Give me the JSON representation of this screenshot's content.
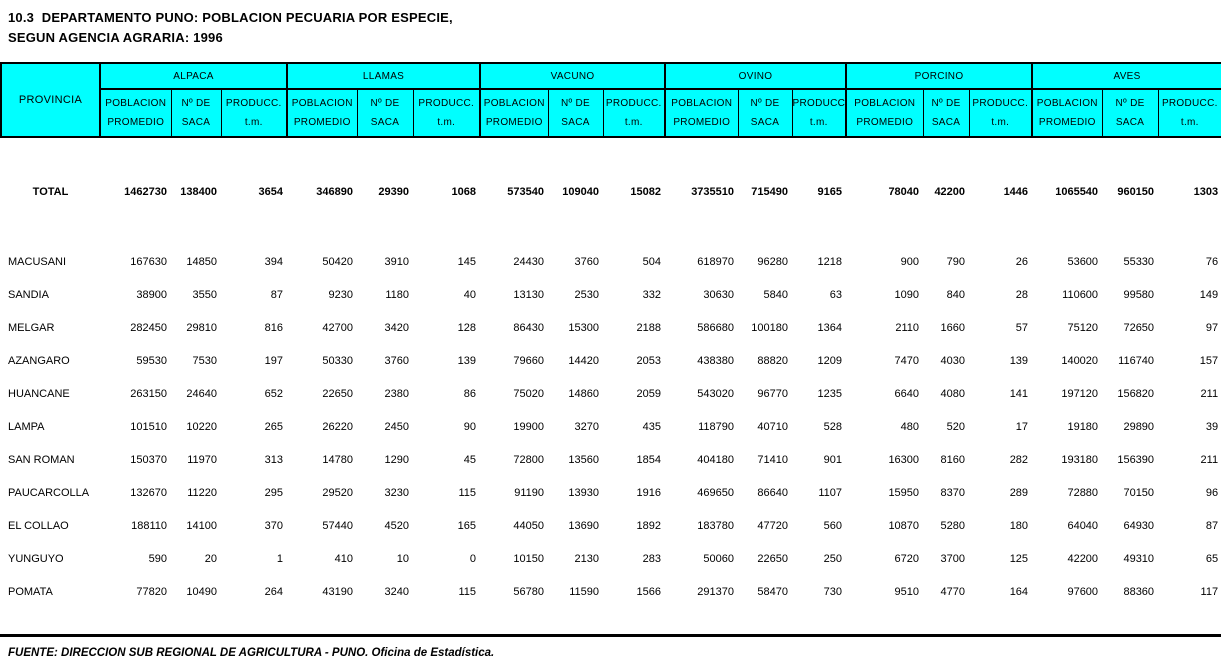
{
  "title": {
    "line1": "10.3  DEPARTAMENTO PUNO: POBLACION PECUARIA POR ESPECIE,",
    "line2": "SEGUN AGENCIA AGRARIA: 1996"
  },
  "table": {
    "province_header": "PROVINCIA",
    "species_groups": [
      "ALPACA",
      "LLAMAS",
      "VACUNO",
      "OVINO",
      "PORCINO",
      "AVES"
    ],
    "sub_headers": [
      [
        "POBLACION",
        "PROMEDIO"
      ],
      [
        "Nº DE",
        "SACA"
      ],
      [
        "PRODUCC.",
        "t.m."
      ]
    ],
    "total_row": {
      "label": "TOTAL",
      "values": [
        1462730,
        138400,
        3654,
        346890,
        29390,
        1068,
        573540,
        109040,
        15082,
        3735510,
        715490,
        9165,
        78040,
        42200,
        1446,
        1065540,
        960150,
        1303
      ]
    },
    "rows": [
      {
        "province": "MACUSANI",
        "values": [
          167630,
          14850,
          394,
          50420,
          3910,
          145,
          24430,
          3760,
          504,
          618970,
          96280,
          1218,
          900,
          790,
          26,
          53600,
          55330,
          76
        ]
      },
      {
        "province": "SANDIA",
        "values": [
          38900,
          3550,
          87,
          9230,
          1180,
          40,
          13130,
          2530,
          332,
          30630,
          5840,
          63,
          1090,
          840,
          28,
          110600,
          99580,
          149
        ]
      },
      {
        "province": "MELGAR",
        "values": [
          282450,
          29810,
          816,
          42700,
          3420,
          128,
          86430,
          15300,
          2188,
          586680,
          100180,
          1364,
          2110,
          1660,
          57,
          75120,
          72650,
          97
        ]
      },
      {
        "province": "AZANGARO",
        "values": [
          59530,
          7530,
          197,
          50330,
          3760,
          139,
          79660,
          14420,
          2053,
          438380,
          88820,
          1209,
          7470,
          4030,
          139,
          140020,
          116740,
          157
        ]
      },
      {
        "province": "HUANCANE",
        "values": [
          263150,
          24640,
          652,
          22650,
          2380,
          86,
          75020,
          14860,
          2059,
          543020,
          96770,
          1235,
          6640,
          4080,
          141,
          197120,
          156820,
          211
        ]
      },
      {
        "province": "LAMPA",
        "values": [
          101510,
          10220,
          265,
          26220,
          2450,
          90,
          19900,
          3270,
          435,
          118790,
          40710,
          528,
          480,
          520,
          17,
          19180,
          29890,
          39
        ]
      },
      {
        "province": "SAN ROMAN",
        "values": [
          150370,
          11970,
          313,
          14780,
          1290,
          45,
          72800,
          13560,
          1854,
          404180,
          71410,
          901,
          16300,
          8160,
          282,
          193180,
          156390,
          211
        ]
      },
      {
        "province": "PAUCARCOLLA",
        "values": [
          132670,
          11220,
          295,
          29520,
          3230,
          115,
          91190,
          13930,
          1916,
          469650,
          86640,
          1107,
          15950,
          8370,
          289,
          72880,
          70150,
          96
        ]
      },
      {
        "province": "EL COLLAO",
        "values": [
          188110,
          14100,
          370,
          57440,
          4520,
          165,
          44050,
          13690,
          1892,
          183780,
          47720,
          560,
          10870,
          5280,
          180,
          64040,
          64930,
          87
        ]
      },
      {
        "province": "YUNGUYO",
        "values": [
          590,
          20,
          1,
          410,
          10,
          0,
          10150,
          2130,
          283,
          50060,
          22650,
          250,
          6720,
          3700,
          125,
          42200,
          49310,
          65
        ]
      },
      {
        "province": "POMATA",
        "values": [
          77820,
          10490,
          264,
          43190,
          3240,
          115,
          56780,
          11590,
          1566,
          291370,
          58470,
          730,
          9510,
          4770,
          164,
          97600,
          88360,
          117
        ]
      }
    ]
  },
  "footer": {
    "source": "FUENTE: DIRECCION SUB REGIONAL DE AGRICULTURA - PUNO. Oficina de Estadística."
  },
  "colors": {
    "header_bg": "#00ffff",
    "border": "#000000",
    "text": "#000000"
  }
}
